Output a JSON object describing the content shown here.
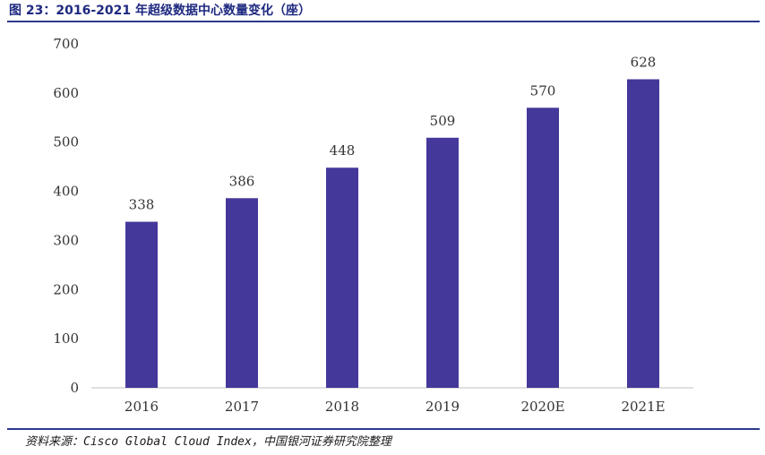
{
  "header": {
    "title": "图 23：2016-2021 年超级数据中心数量变化（座）"
  },
  "chart_data": {
    "type": "bar",
    "categories": [
      "2016",
      "2017",
      "2018",
      "2019",
      "2020E",
      "2021E"
    ],
    "values": [
      338,
      386,
      448,
      509,
      570,
      628
    ],
    "title": "图 23：2016-2021 年超级数据中心数量变化（座）",
    "xlabel": "",
    "ylabel": "",
    "ylim": [
      0,
      700
    ],
    "yticks": [
      "0",
      "100",
      "200",
      "300",
      "400",
      "500",
      "600",
      "700"
    ],
    "grid": false,
    "bar_color": "#44389a",
    "data_labels": true
  },
  "footer": {
    "source": "资料来源：Cisco Global Cloud Index，中国银河证券研究院整理"
  }
}
